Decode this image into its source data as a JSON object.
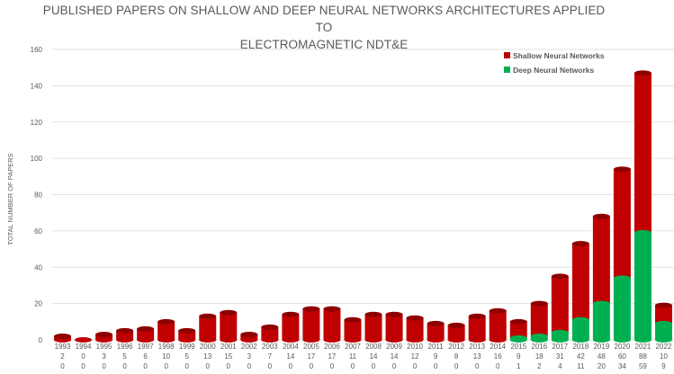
{
  "chart_data": {
    "type": "bar",
    "stacked": true,
    "title": "PUBLISHED PAPERS ON SHALLOW AND DEEP NEURAL NETWORKS ARCHITECTURES APPLIED TO ELECTROMAGNETIC NDT&E",
    "title_lines": [
      "PUBLISHED PAPERS ON SHALLOW AND DEEP NEURAL NETWORKS ARCHITECTURES APPLIED TO",
      "ELECTROMAGNETIC NDT&E"
    ],
    "ylabel": "TOTAL NUMBER OF PAPERS",
    "xlabel": "",
    "ylim": [
      0,
      160
    ],
    "yticks": [
      0,
      20,
      40,
      60,
      80,
      100,
      120,
      140,
      160
    ],
    "grid": true,
    "legend_position": "top-right",
    "categories": [
      "1993",
      "1994",
      "1995",
      "1996",
      "1997",
      "1998",
      "1999",
      "2000",
      "2001",
      "2002",
      "2003",
      "2004",
      "2005",
      "2006",
      "2007",
      "2008",
      "2009",
      "2010",
      "2011",
      "2012",
      "2013",
      "2014",
      "2015",
      "2016",
      "2017",
      "2018",
      "2019",
      "2020",
      "2021",
      "2022"
    ],
    "series": [
      {
        "name": "Shallow Neural Networks",
        "color": "#c00000",
        "values": [
          2,
          0,
          3,
          5,
          6,
          10,
          5,
          13,
          15,
          3,
          7,
          14,
          17,
          17,
          11,
          14,
          14,
          12,
          9,
          8,
          13,
          16,
          9,
          18,
          31,
          42,
          48,
          60,
          88,
          10
        ]
      },
      {
        "name": "Deep Neural Networks",
        "color": "#00b050",
        "values": [
          0,
          0,
          0,
          0,
          0,
          0,
          0,
          0,
          0,
          0,
          0,
          0,
          0,
          0,
          0,
          0,
          0,
          0,
          0,
          0,
          0,
          0,
          1,
          2,
          4,
          11,
          20,
          34,
          59,
          9
        ]
      }
    ]
  }
}
